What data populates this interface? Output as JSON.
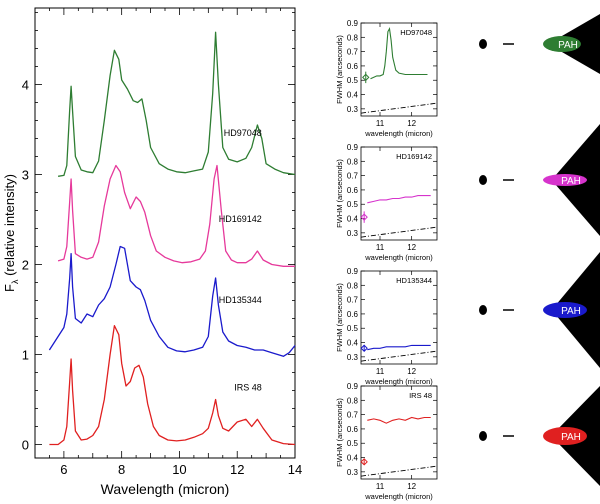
{
  "chart_data": {
    "main": {
      "type": "line",
      "xlabel": "Wavelength (micron)",
      "ylabel_main": "F",
      "ylabel_sub": "λ",
      "ylabel_rest": "(relative intensity)",
      "xlim": [
        5,
        14
      ],
      "ylim": [
        -0.15,
        4.85
      ],
      "xticks": [
        6,
        8,
        10,
        12,
        14
      ],
      "yticks": [
        0,
        1,
        2,
        3,
        4
      ],
      "series": [
        {
          "name": "HD97048",
          "color": "#2e7d32",
          "x": [
            5.8,
            6.0,
            6.1,
            6.2,
            6.25,
            6.3,
            6.4,
            6.6,
            6.8,
            7.0,
            7.2,
            7.4,
            7.6,
            7.75,
            7.9,
            8.0,
            8.2,
            8.4,
            8.55,
            8.7,
            8.85,
            9.0,
            9.3,
            9.6,
            9.9,
            10.2,
            10.5,
            10.8,
            11.0,
            11.15,
            11.25,
            11.35,
            11.5,
            11.7,
            12.0,
            12.3,
            12.5,
            12.7,
            12.85,
            13.0,
            13.3,
            13.6,
            14.0
          ],
          "values": [
            2.98,
            2.99,
            3.1,
            3.72,
            3.98,
            3.7,
            3.2,
            3.05,
            3.03,
            3.02,
            3.15,
            3.6,
            4.1,
            4.38,
            4.28,
            4.05,
            3.95,
            3.82,
            3.8,
            3.84,
            3.6,
            3.3,
            3.12,
            3.06,
            3.03,
            3.02,
            3.04,
            3.06,
            3.25,
            3.9,
            4.58,
            4.0,
            3.3,
            3.17,
            3.14,
            3.18,
            3.3,
            3.55,
            3.4,
            3.12,
            3.06,
            3.02,
            3.0
          ]
        },
        {
          "name": "HD169142",
          "color": "#e6399b",
          "x": [
            5.8,
            6.0,
            6.1,
            6.2,
            6.25,
            6.3,
            6.4,
            6.6,
            6.8,
            7.0,
            7.2,
            7.4,
            7.6,
            7.8,
            7.95,
            8.1,
            8.3,
            8.5,
            8.65,
            8.8,
            9.0,
            9.2,
            9.5,
            9.8,
            10.1,
            10.4,
            10.7,
            10.9,
            11.05,
            11.2,
            11.3,
            11.45,
            11.6,
            11.8,
            12.0,
            12.3,
            12.5,
            12.7,
            12.9,
            13.2,
            13.6,
            14.0
          ],
          "values": [
            2.04,
            2.06,
            2.2,
            2.7,
            2.95,
            2.6,
            2.12,
            2.08,
            2.06,
            2.08,
            2.25,
            2.65,
            2.95,
            3.1,
            3.03,
            2.8,
            2.62,
            2.75,
            2.7,
            2.58,
            2.32,
            2.15,
            2.08,
            2.04,
            2.02,
            2.03,
            2.06,
            2.15,
            2.45,
            2.95,
            3.1,
            2.6,
            2.15,
            2.05,
            2.02,
            2.02,
            2.06,
            2.15,
            2.05,
            2.0,
            1.98,
            1.98
          ]
        },
        {
          "name": "HD135344",
          "color": "#1a1acc",
          "x": [
            5.5,
            5.7,
            5.9,
            6.0,
            6.1,
            6.2,
            6.25,
            6.3,
            6.4,
            6.6,
            6.8,
            7.0,
            7.2,
            7.4,
            7.6,
            7.8,
            7.95,
            8.1,
            8.3,
            8.5,
            8.65,
            8.8,
            9.0,
            9.3,
            9.6,
            9.9,
            10.2,
            10.5,
            10.8,
            11.0,
            11.15,
            11.25,
            11.35,
            11.5,
            11.7,
            12.0,
            12.3,
            12.6,
            12.9,
            13.2,
            13.6,
            13.8,
            14.0
          ],
          "values": [
            1.05,
            1.15,
            1.25,
            1.3,
            1.45,
            1.85,
            2.12,
            1.75,
            1.4,
            1.35,
            1.45,
            1.42,
            1.55,
            1.62,
            1.75,
            2.0,
            2.2,
            2.18,
            1.82,
            1.75,
            1.72,
            1.6,
            1.38,
            1.2,
            1.08,
            1.04,
            1.03,
            1.05,
            1.08,
            1.2,
            1.65,
            1.85,
            1.55,
            1.25,
            1.15,
            1.1,
            1.08,
            1.05,
            1.05,
            1.02,
            0.98,
            1.02,
            1.1
          ]
        },
        {
          "name": "IRS 48",
          "color": "#e02020",
          "x": [
            5.5,
            5.8,
            6.0,
            6.1,
            6.2,
            6.25,
            6.3,
            6.4,
            6.6,
            6.8,
            7.0,
            7.2,
            7.4,
            7.6,
            7.75,
            7.9,
            8.0,
            8.15,
            8.3,
            8.45,
            8.6,
            8.75,
            8.9,
            9.1,
            9.3,
            9.6,
            9.9,
            10.2,
            10.5,
            10.8,
            11.0,
            11.15,
            11.25,
            11.35,
            11.5,
            11.7,
            12.0,
            12.3,
            12.5,
            12.7,
            12.9,
            13.2,
            13.6,
            14.0
          ],
          "values": [
            0.0,
            0.0,
            0.05,
            0.2,
            0.7,
            0.95,
            0.6,
            0.15,
            0.05,
            0.06,
            0.1,
            0.2,
            0.5,
            1.0,
            1.32,
            1.22,
            0.9,
            0.65,
            0.7,
            0.85,
            0.88,
            0.75,
            0.45,
            0.2,
            0.1,
            0.05,
            0.04,
            0.05,
            0.08,
            0.12,
            0.18,
            0.35,
            0.5,
            0.32,
            0.18,
            0.15,
            0.25,
            0.28,
            0.2,
            0.28,
            0.18,
            0.05,
            0.01,
            0.0
          ]
        }
      ]
    },
    "insets": [
      {
        "label": "HD97048",
        "color": "#2e7d32",
        "ylabel": "FWHM (arcseconds)",
        "xlabel": "wavelength (micron)",
        "xlim": [
          10.4,
          12.8
        ],
        "ylim": [
          0.25,
          0.9
        ],
        "xticks": [
          11,
          12
        ],
        "yticks": [
          0.3,
          0.4,
          0.5,
          0.6,
          0.7,
          0.8,
          0.9
        ],
        "x": [
          10.7,
          10.9,
          11.0,
          11.1,
          11.15,
          11.2,
          11.25,
          11.3,
          11.35,
          11.4,
          11.5,
          11.6,
          11.8,
          12.0,
          12.2,
          12.5
        ],
        "values": [
          0.51,
          0.53,
          0.53,
          0.54,
          0.6,
          0.7,
          0.84,
          0.86,
          0.78,
          0.66,
          0.57,
          0.55,
          0.54,
          0.54,
          0.54,
          0.54
        ],
        "point": {
          "x": 10.55,
          "y": 0.52,
          "err": 0.04
        },
        "diffraction": {
          "x": [
            10.4,
            12.8
          ],
          "y": [
            0.27,
            0.34
          ]
        },
        "pah_label": "PAH"
      },
      {
        "label": "HD169142",
        "color": "#d633cc",
        "ylabel": "FWHM (arcseconds)",
        "xlabel": "wavelength (micron)",
        "xlim": [
          10.4,
          12.8
        ],
        "ylim": [
          0.25,
          0.9
        ],
        "xticks": [
          11,
          12
        ],
        "yticks": [
          0.3,
          0.4,
          0.5,
          0.6,
          0.7,
          0.8,
          0.9
        ],
        "x": [
          10.6,
          10.8,
          11.0,
          11.2,
          11.4,
          11.6,
          11.8,
          12.0,
          12.2,
          12.4,
          12.6
        ],
        "values": [
          0.51,
          0.52,
          0.53,
          0.53,
          0.54,
          0.54,
          0.55,
          0.55,
          0.56,
          0.56,
          0.56
        ],
        "point": {
          "x": 10.5,
          "y": 0.41,
          "err": 0.04
        },
        "diffraction": {
          "x": [
            10.4,
            12.8
          ],
          "y": [
            0.27,
            0.34
          ]
        },
        "pah_label": "PAH"
      },
      {
        "label": "HD135344",
        "color": "#1a1acc",
        "ylabel": "FWHM (arcseconds)",
        "xlabel": "wavelength (micron)",
        "xlim": [
          10.4,
          12.8
        ],
        "ylim": [
          0.25,
          0.9
        ],
        "xticks": [
          11,
          12
        ],
        "yticks": [
          0.3,
          0.4,
          0.5,
          0.6,
          0.7,
          0.8,
          0.9
        ],
        "x": [
          10.6,
          10.8,
          11.0,
          11.2,
          11.4,
          11.6,
          11.8,
          12.0,
          12.2,
          12.4,
          12.6
        ],
        "values": [
          0.35,
          0.36,
          0.36,
          0.37,
          0.37,
          0.37,
          0.37,
          0.38,
          0.38,
          0.38,
          0.38
        ],
        "point": {
          "x": 10.5,
          "y": 0.36,
          "err": 0.02
        },
        "diffraction": {
          "x": [
            10.4,
            12.8
          ],
          "y": [
            0.27,
            0.34
          ]
        },
        "pah_label": "PAH"
      },
      {
        "label": "IRS 48",
        "color": "#e02020",
        "ylabel": "FWHM (arcseconds)",
        "xlabel": "wavelength (micron)",
        "xlim": [
          10.4,
          12.8
        ],
        "ylim": [
          0.25,
          0.9
        ],
        "xticks": [
          11,
          12
        ],
        "yticks": [
          0.3,
          0.4,
          0.5,
          0.6,
          0.7,
          0.8,
          0.9
        ],
        "x": [
          10.6,
          10.8,
          11.0,
          11.2,
          11.4,
          11.6,
          11.8,
          12.0,
          12.2,
          12.4,
          12.6
        ],
        "values": [
          0.66,
          0.67,
          0.66,
          0.64,
          0.66,
          0.67,
          0.66,
          0.68,
          0.67,
          0.68,
          0.68
        ],
        "point": {
          "x": 10.5,
          "y": 0.37,
          "err": 0.02
        },
        "diffraction": {
          "x": [
            10.4,
            12.8
          ],
          "y": [
            0.27,
            0.34
          ]
        },
        "pah_label": "PAH"
      }
    ]
  }
}
